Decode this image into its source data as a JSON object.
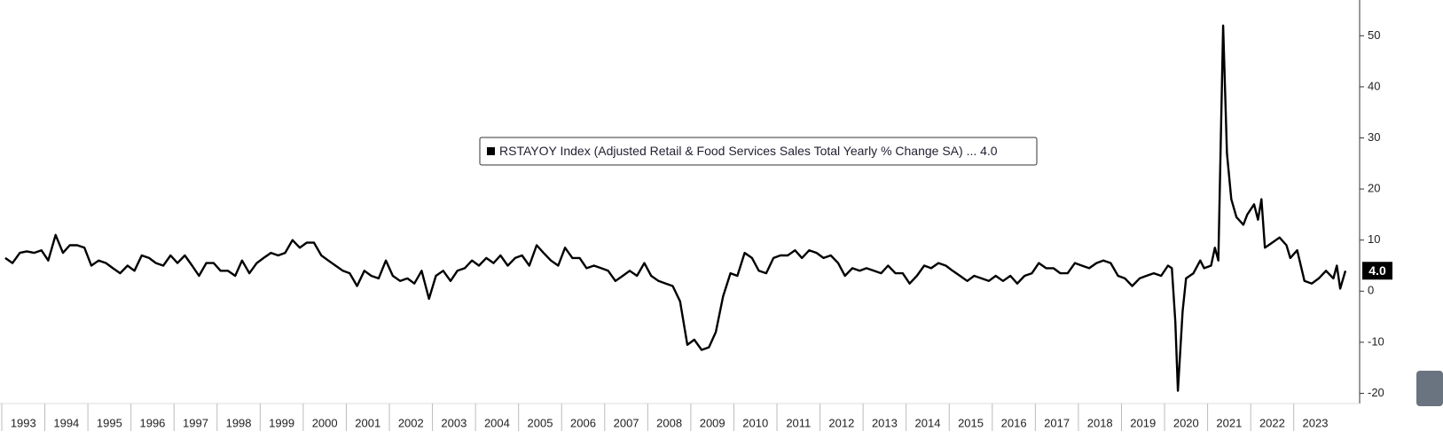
{
  "chart_data": {
    "type": "line",
    "x": [
      1993.08,
      1993.25,
      1993.42,
      1993.58,
      1993.75,
      1993.92,
      1994.08,
      1994.25,
      1994.42,
      1994.58,
      1994.75,
      1994.92,
      1995.08,
      1995.25,
      1995.42,
      1995.58,
      1995.75,
      1995.92,
      1996.08,
      1996.25,
      1996.42,
      1996.58,
      1996.75,
      1996.92,
      1997.08,
      1997.25,
      1997.42,
      1997.58,
      1997.75,
      1997.92,
      1998.08,
      1998.25,
      1998.42,
      1998.58,
      1998.75,
      1998.92,
      1999.08,
      1999.25,
      1999.42,
      1999.58,
      1999.75,
      1999.92,
      2000.08,
      2000.25,
      2000.42,
      2000.58,
      2000.75,
      2000.92,
      2001.08,
      2001.25,
      2001.42,
      2001.58,
      2001.75,
      2001.92,
      2002.08,
      2002.25,
      2002.42,
      2002.58,
      2002.75,
      2002.92,
      2003.08,
      2003.25,
      2003.42,
      2003.58,
      2003.75,
      2003.92,
      2004.08,
      2004.25,
      2004.42,
      2004.58,
      2004.75,
      2004.92,
      2005.08,
      2005.25,
      2005.42,
      2005.58,
      2005.75,
      2005.92,
      2006.08,
      2006.25,
      2006.42,
      2006.58,
      2006.75,
      2006.92,
      2007.08,
      2007.25,
      2007.42,
      2007.58,
      2007.75,
      2007.92,
      2008.08,
      2008.25,
      2008.42,
      2008.58,
      2008.75,
      2008.92,
      2009.08,
      2009.25,
      2009.42,
      2009.58,
      2009.75,
      2009.92,
      2010.08,
      2010.25,
      2010.42,
      2010.58,
      2010.75,
      2010.92,
      2011.08,
      2011.25,
      2011.42,
      2011.58,
      2011.75,
      2011.92,
      2012.08,
      2012.25,
      2012.42,
      2012.58,
      2012.75,
      2012.92,
      2013.08,
      2013.25,
      2013.42,
      2013.58,
      2013.75,
      2013.92,
      2014.08,
      2014.25,
      2014.42,
      2014.58,
      2014.75,
      2014.92,
      2015.08,
      2015.25,
      2015.42,
      2015.58,
      2015.75,
      2015.92,
      2016.08,
      2016.25,
      2016.42,
      2016.58,
      2016.75,
      2016.92,
      2017.08,
      2017.25,
      2017.42,
      2017.58,
      2017.75,
      2017.92,
      2018.08,
      2018.25,
      2018.42,
      2018.58,
      2018.75,
      2018.92,
      2019.08,
      2019.25,
      2019.42,
      2019.58,
      2019.75,
      2019.92,
      2020.08,
      2020.17,
      2020.25,
      2020.31,
      2020.42,
      2020.5,
      2020.67,
      2020.83,
      2020.92,
      2021.08,
      2021.17,
      2021.25,
      2021.36,
      2021.45,
      2021.55,
      2021.67,
      2021.83,
      2021.92,
      2022.08,
      2022.17,
      2022.25,
      2022.33,
      2022.5,
      2022.67,
      2022.83,
      2022.92,
      2023.08,
      2023.25,
      2023.42,
      2023.58,
      2023.75,
      2023.92,
      2024.0,
      2024.08,
      2024.2
    ],
    "series": [
      {
        "name": "RSTAYOY Index (Adjusted Retail & Food Services Sales Total Yearly % Change SA) ...",
        "color": "#000000",
        "last_label": "4.0",
        "values": [
          6.5,
          5.5,
          7.5,
          7.8,
          7.5,
          8,
          6,
          11,
          7.5,
          9,
          9,
          8.5,
          5,
          6,
          5.5,
          4.5,
          3.5,
          5,
          4,
          7,
          6.5,
          5.5,
          5,
          7,
          5.5,
          7,
          5,
          3,
          5.5,
          5.5,
          4,
          4,
          3,
          6,
          3.5,
          5.5,
          6.5,
          7.5,
          7,
          7.5,
          10,
          8.5,
          9.5,
          9.5,
          7,
          6,
          5,
          4,
          3.5,
          1,
          4,
          3,
          2.5,
          6,
          3,
          2,
          2.5,
          1.5,
          4,
          -1.5,
          3,
          4,
          2,
          4,
          4.5,
          6,
          5,
          6.5,
          5.5,
          7,
          5,
          6.5,
          7,
          5,
          9,
          7.5,
          6,
          5,
          8.5,
          6.5,
          6.5,
          4.5,
          5,
          4.5,
          4,
          2,
          3,
          4,
          3,
          5.5,
          3,
          2,
          1.5,
          1,
          -2,
          -10.5,
          -9.5,
          -11.5,
          -11,
          -8,
          -1,
          3.5,
          3,
          7.5,
          6.5,
          4,
          3.5,
          6.5,
          7,
          7,
          8,
          6.5,
          8,
          7.5,
          6.5,
          7,
          5.5,
          3,
          4.5,
          4,
          4.5,
          4,
          3.5,
          5,
          3.5,
          3.5,
          1.5,
          3,
          5,
          4.5,
          5.5,
          5,
          4,
          3,
          2,
          3,
          2.5,
          2,
          3,
          2,
          3,
          1.5,
          3,
          3.5,
          5.5,
          4.5,
          4.5,
          3.5,
          3.5,
          5.5,
          5,
          4.5,
          5.5,
          6,
          5.5,
          3,
          2.5,
          1,
          2.5,
          3,
          3.5,
          3,
          5,
          4.5,
          -6,
          -19.5,
          -4,
          2.5,
          3.5,
          6,
          4.5,
          5,
          8.5,
          6,
          52,
          27,
          18,
          14.5,
          13,
          15,
          17,
          14,
          18,
          8.5,
          9.5,
          10.5,
          9,
          6.5,
          8,
          2,
          1.5,
          2.5,
          4,
          2.5,
          5,
          0.5,
          4.0
        ]
      }
    ],
    "xlim": [
      1993,
      2024.53
    ],
    "xticks": [
      {
        "value": 1993.5,
        "label": "1993"
      },
      {
        "value": 1994.5,
        "label": "1994"
      },
      {
        "value": 1995.5,
        "label": "1995"
      },
      {
        "value": 1996.5,
        "label": "1996"
      },
      {
        "value": 1997.5,
        "label": "1997"
      },
      {
        "value": 1998.5,
        "label": "1998"
      },
      {
        "value": 1999.5,
        "label": "1999"
      },
      {
        "value": 2000.5,
        "label": "2000"
      },
      {
        "value": 2001.5,
        "label": "2001"
      },
      {
        "value": 2002.5,
        "label": "2002"
      },
      {
        "value": 2003.5,
        "label": "2003"
      },
      {
        "value": 2004.5,
        "label": "2004"
      },
      {
        "value": 2005.5,
        "label": "2005"
      },
      {
        "value": 2006.5,
        "label": "2006"
      },
      {
        "value": 2007.5,
        "label": "2007"
      },
      {
        "value": 2008.5,
        "label": "2008"
      },
      {
        "value": 2009.5,
        "label": "2009"
      },
      {
        "value": 2010.5,
        "label": "2010"
      },
      {
        "value": 2011.5,
        "label": "2011"
      },
      {
        "value": 2012.5,
        "label": "2012"
      },
      {
        "value": 2013.5,
        "label": "2013"
      },
      {
        "value": 2014.5,
        "label": "2014"
      },
      {
        "value": 2015.5,
        "label": "2015"
      },
      {
        "value": 2016.5,
        "label": "2016"
      },
      {
        "value": 2017.5,
        "label": "2017"
      },
      {
        "value": 2018.5,
        "label": "2018"
      },
      {
        "value": 2019.5,
        "label": "2019"
      },
      {
        "value": 2020.5,
        "label": "2020"
      },
      {
        "value": 2021.5,
        "label": "2021"
      },
      {
        "value": 2022.5,
        "label": "2022"
      },
      {
        "value": 2023.5,
        "label": "2023"
      }
    ],
    "ylim": [
      -22,
      57
    ],
    "yticks": [
      -20,
      -10,
      0,
      10,
      20,
      30,
      40,
      50
    ]
  }
}
